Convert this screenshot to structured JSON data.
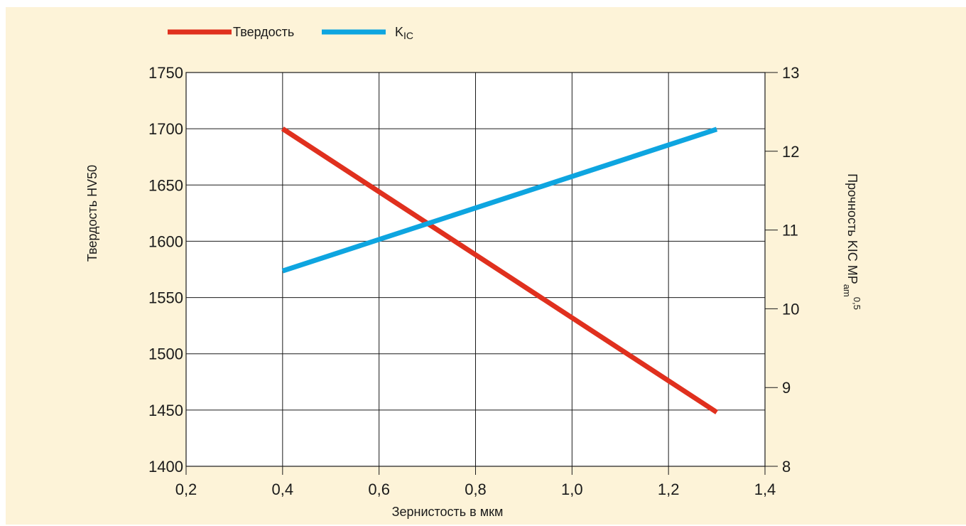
{
  "chart_data": {
    "type": "line",
    "xlabel": "Зернистость в мкм",
    "ylabel_left": "Твердость HV50",
    "ylabel_right_main": "Прочность KIC MP",
    "ylabel_right_sub": "am",
    "ylabel_right_sup": "0,5",
    "x_ticks": [
      "0,2",
      "0,4",
      "0,6",
      "0,8",
      "1,0",
      "1,2",
      "1,4"
    ],
    "x_tick_values": [
      0.2,
      0.4,
      0.6,
      0.8,
      1.0,
      1.2,
      1.4
    ],
    "xlim": [
      0.2,
      1.4
    ],
    "y_left_ticks": [
      "1400",
      "1450",
      "1500",
      "1550",
      "1600",
      "1650",
      "1700",
      "1750"
    ],
    "y_left_tick_values": [
      1400,
      1450,
      1500,
      1550,
      1600,
      1650,
      1700,
      1750
    ],
    "ylim_left": [
      1400,
      1750
    ],
    "y_right_ticks": [
      "8",
      "9",
      "10",
      "11",
      "12",
      "13"
    ],
    "y_right_tick_values": [
      8,
      9,
      10,
      11,
      12,
      13
    ],
    "ylim_right": [
      8,
      13
    ],
    "grid": true,
    "legend_position": "top-left",
    "series": [
      {
        "name": "Твердость",
        "legend_label": "Твердость",
        "axis": "left",
        "color": "#e0301e",
        "x": [
          0.4,
          1.3
        ],
        "y": [
          1700,
          1448
        ]
      },
      {
        "name": "KIC",
        "legend_main": "K",
        "legend_sub": "IC",
        "axis": "right",
        "color": "#0ea5e0",
        "x": [
          0.4,
          1.3
        ],
        "y": [
          10.48,
          12.28
        ]
      }
    ]
  }
}
